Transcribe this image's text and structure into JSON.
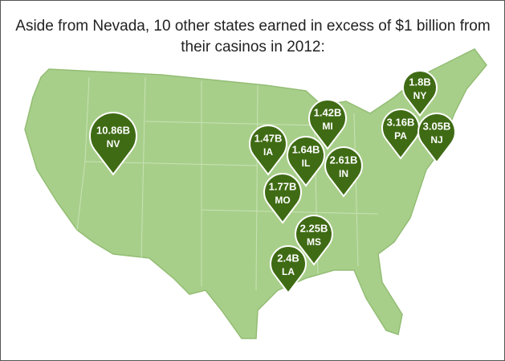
{
  "title_lines": [
    "Aside from Nevada, 10 other states earned in excess of $1 billion from",
    "their casinos in 2012:"
  ],
  "pins": [
    {
      "amount": "10.86B",
      "state": "NV"
    },
    {
      "amount": "1.47B",
      "state": "IA"
    },
    {
      "amount": "1.42B",
      "state": "MI"
    },
    {
      "amount": "1.64B",
      "state": "IL"
    },
    {
      "amount": "2.61B",
      "state": "IN"
    },
    {
      "amount": "1.77B",
      "state": "MO"
    },
    {
      "amount": "1.8B",
      "state": "NY"
    },
    {
      "amount": "3.16B",
      "state": "PA"
    },
    {
      "amount": "3.05B",
      "state": "NJ"
    },
    {
      "amount": "2.25B",
      "state": "MS"
    },
    {
      "amount": "2.4B",
      "state": "LA"
    }
  ]
}
